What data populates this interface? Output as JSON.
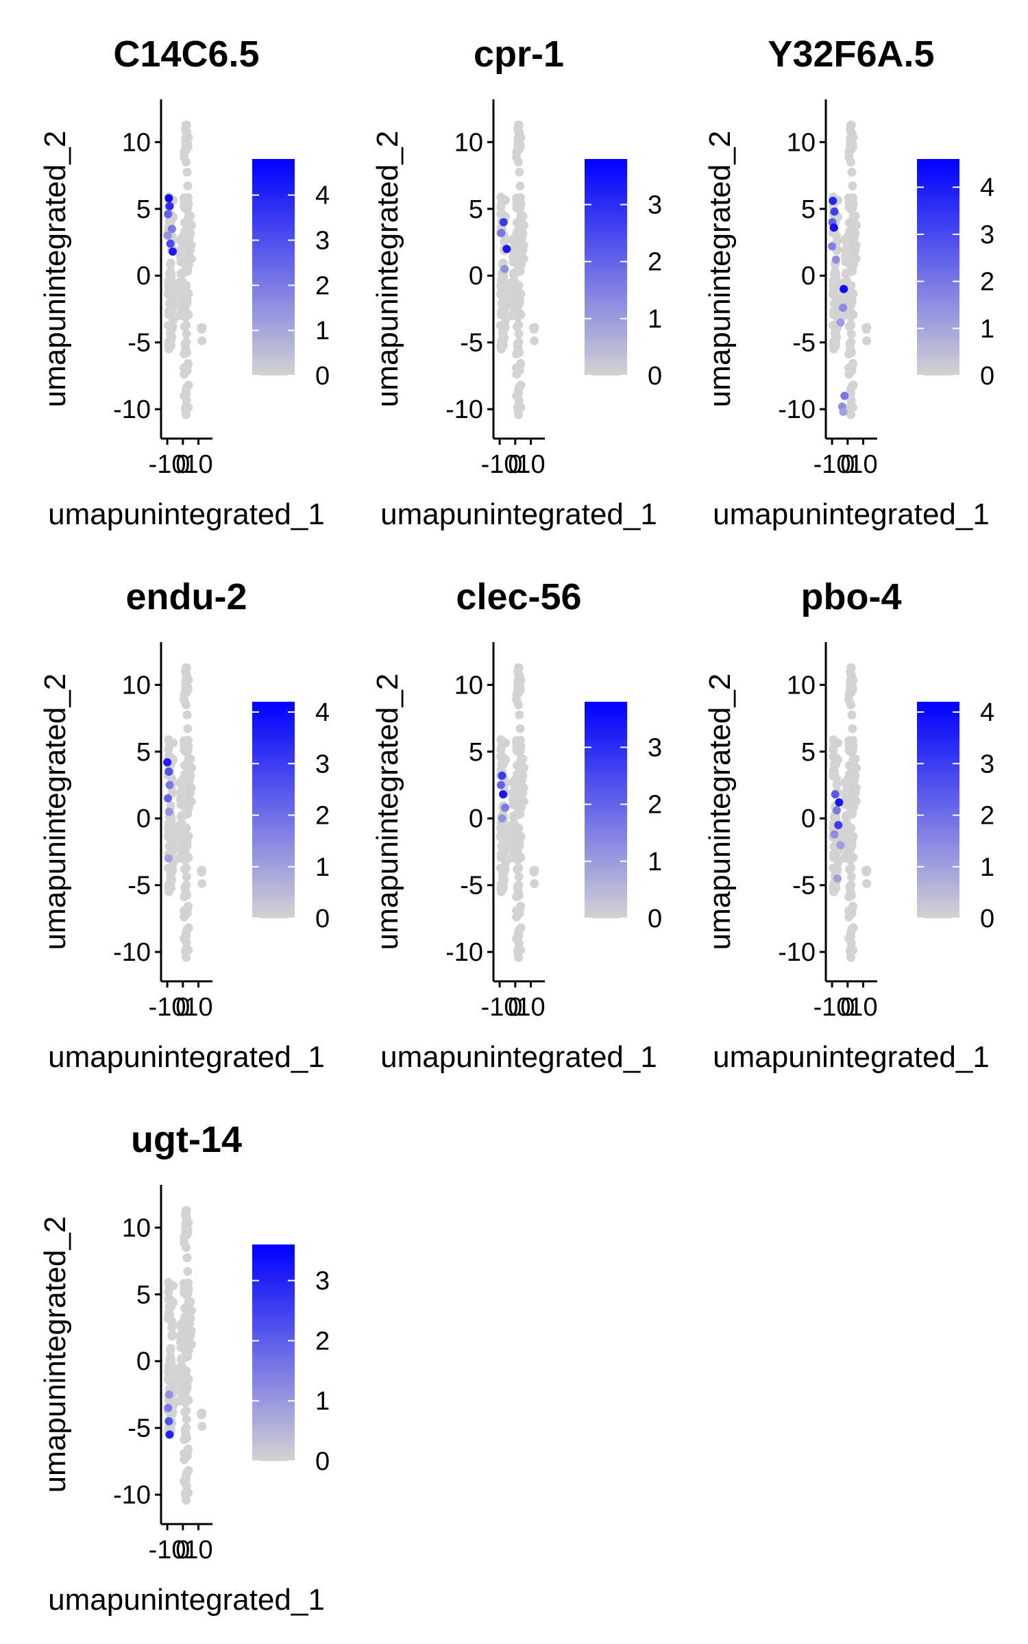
{
  "figure": {
    "background": "#ffffff"
  },
  "chart_data": [
    {
      "type": "scatter",
      "title": "C14C6.5",
      "xlabel": "umapunintegrated_1",
      "ylabel": "umapunintegrated_2",
      "xticks": [
        -10,
        0,
        10
      ],
      "yticks": [
        -10,
        -5,
        0,
        5,
        10
      ],
      "xlim": [
        -14,
        19
      ],
      "ylim": [
        -12.2,
        13.2
      ],
      "legend": {
        "labels": [
          0,
          1,
          2,
          3,
          4
        ],
        "min": 0,
        "max": 4.8,
        "low_color": "#d3d3d3",
        "high_color": "#0000ff",
        "position": "right"
      },
      "expressing_points": [
        [
          -9,
          5.8,
          4.5
        ],
        [
          -8.5,
          5.2,
          3.8
        ],
        [
          -9.5,
          4.6,
          2.6
        ],
        [
          -7,
          3.5,
          2.0
        ],
        [
          -8,
          2.4,
          3.1
        ],
        [
          -9.8,
          3.0,
          1.4
        ],
        [
          -6.5,
          1.8,
          4.2
        ]
      ]
    },
    {
      "type": "scatter",
      "title": "cpr-1",
      "xlabel": "umapunintegrated_1",
      "ylabel": "umapunintegrated_2",
      "xticks": [
        -10,
        0,
        10
      ],
      "yticks": [
        -10,
        -5,
        0,
        5,
        10
      ],
      "xlim": [
        -14,
        19
      ],
      "ylim": [
        -12.2,
        13.2
      ],
      "legend": {
        "labels": [
          0,
          1,
          2,
          3
        ],
        "min": 0,
        "max": 3.8,
        "low_color": "#d3d3d3",
        "high_color": "#0000ff",
        "position": "right"
      },
      "expressing_points": [
        [
          -7.5,
          4.0,
          2.8
        ],
        [
          -5.5,
          2.0,
          3.4
        ],
        [
          -9,
          3.2,
          1.6
        ],
        [
          -6.8,
          0.5,
          1.2
        ]
      ]
    },
    {
      "type": "scatter",
      "title": "Y32F6A.5",
      "xlabel": "umapunintegrated_1",
      "ylabel": "umapunintegrated_2",
      "xticks": [
        -10,
        0,
        10
      ],
      "yticks": [
        -10,
        -5,
        0,
        5,
        10
      ],
      "xlim": [
        -14,
        19
      ],
      "ylim": [
        -12.2,
        13.2
      ],
      "legend": {
        "labels": [
          0,
          1,
          2,
          3,
          4
        ],
        "min": 0,
        "max": 4.6,
        "low_color": "#d3d3d3",
        "high_color": "#0000ff",
        "position": "right"
      },
      "expressing_points": [
        [
          -9.5,
          5.6,
          3.8
        ],
        [
          -8.5,
          4.8,
          3.2
        ],
        [
          -9.8,
          4.0,
          2.5
        ],
        [
          -8.8,
          3.6,
          4.2
        ],
        [
          -10,
          2.2,
          1.8
        ],
        [
          -7.5,
          1.2,
          1.5
        ],
        [
          -2.5,
          -1.0,
          4.4
        ],
        [
          -3,
          -2.4,
          1.6
        ],
        [
          -4.5,
          -3.5,
          1.2
        ],
        [
          -2.0,
          -9.0,
          2.0
        ],
        [
          -3.5,
          -9.8,
          1.5
        ],
        [
          -2.8,
          -10.2,
          1.1
        ]
      ]
    },
    {
      "type": "scatter",
      "title": "endu-2",
      "xlabel": "umapunintegrated_1",
      "ylabel": "umapunintegrated_2",
      "xticks": [
        -10,
        0,
        10
      ],
      "yticks": [
        -10,
        -5,
        0,
        5,
        10
      ],
      "xlim": [
        -14,
        19
      ],
      "ylim": [
        -12.2,
        13.2
      ],
      "legend": {
        "labels": [
          0,
          1,
          2,
          3,
          4
        ],
        "min": 0,
        "max": 4.2,
        "low_color": "#d3d3d3",
        "high_color": "#0000ff",
        "position": "right"
      },
      "expressing_points": [
        [
          -10,
          4.2,
          3.6
        ],
        [
          -9,
          3.5,
          2.6
        ],
        [
          -8.5,
          2.5,
          1.8
        ],
        [
          -9.6,
          1.5,
          2.2
        ],
        [
          -8.8,
          0.5,
          1.2
        ],
        [
          -9.2,
          -3.0,
          1.0
        ]
      ]
    },
    {
      "type": "scatter",
      "title": "clec-56",
      "xlabel": "umapunintegrated_1",
      "ylabel": "umapunintegrated_2",
      "xticks": [
        -10,
        0,
        10
      ],
      "yticks": [
        -10,
        -5,
        0,
        5,
        10
      ],
      "xlim": [
        -14,
        19
      ],
      "ylim": [
        -12.2,
        13.2
      ],
      "legend": {
        "labels": [
          0,
          1,
          2,
          3
        ],
        "min": 0,
        "max": 3.8,
        "low_color": "#d3d3d3",
        "high_color": "#0000ff",
        "position": "right"
      },
      "expressing_points": [
        [
          -8.5,
          3.2,
          2.8
        ],
        [
          -9.2,
          2.5,
          2.0
        ],
        [
          -7.8,
          1.8,
          3.4
        ],
        [
          -6.5,
          0.8,
          1.6
        ],
        [
          -8.5,
          0.0,
          1.2
        ]
      ]
    },
    {
      "type": "scatter",
      "title": "pbo-4",
      "xlabel": "umapunintegrated_1",
      "ylabel": "umapunintegrated_2",
      "xticks": [
        -10,
        0,
        10
      ],
      "yticks": [
        -10,
        -5,
        0,
        5,
        10
      ],
      "xlim": [
        -14,
        19
      ],
      "ylim": [
        -12.2,
        13.2
      ],
      "legend": {
        "labels": [
          0,
          1,
          2,
          3,
          4
        ],
        "min": 0,
        "max": 4.2,
        "low_color": "#d3d3d3",
        "high_color": "#0000ff",
        "position": "right"
      },
      "expressing_points": [
        [
          -8,
          1.8,
          2.4
        ],
        [
          -5.5,
          1.2,
          3.8
        ],
        [
          -7,
          0.6,
          1.8
        ],
        [
          -6,
          -0.5,
          3.0
        ],
        [
          -8.5,
          -1.2,
          1.4
        ],
        [
          -4.5,
          -2.0,
          1.1
        ],
        [
          -6.5,
          -4.5,
          1.0
        ]
      ]
    },
    {
      "type": "scatter",
      "title": "ugt-14",
      "xlabel": "umapunintegrated_1",
      "ylabel": "umapunintegrated_2",
      "xticks": [
        -10,
        0,
        10
      ],
      "yticks": [
        -10,
        -5,
        0,
        5,
        10
      ],
      "xlim": [
        -14,
        19
      ],
      "ylim": [
        -12.2,
        13.2
      ],
      "legend": {
        "labels": [
          0,
          1,
          2,
          3
        ],
        "min": 0,
        "max": 3.6,
        "low_color": "#d3d3d3",
        "high_color": "#0000ff",
        "position": "right"
      },
      "expressing_points": [
        [
          -8.5,
          -5.5,
          3.0
        ],
        [
          -9,
          -4.5,
          2.2
        ],
        [
          -9.5,
          -3.5,
          1.5
        ],
        [
          -8.8,
          -2.5,
          1.1
        ]
      ]
    }
  ]
}
